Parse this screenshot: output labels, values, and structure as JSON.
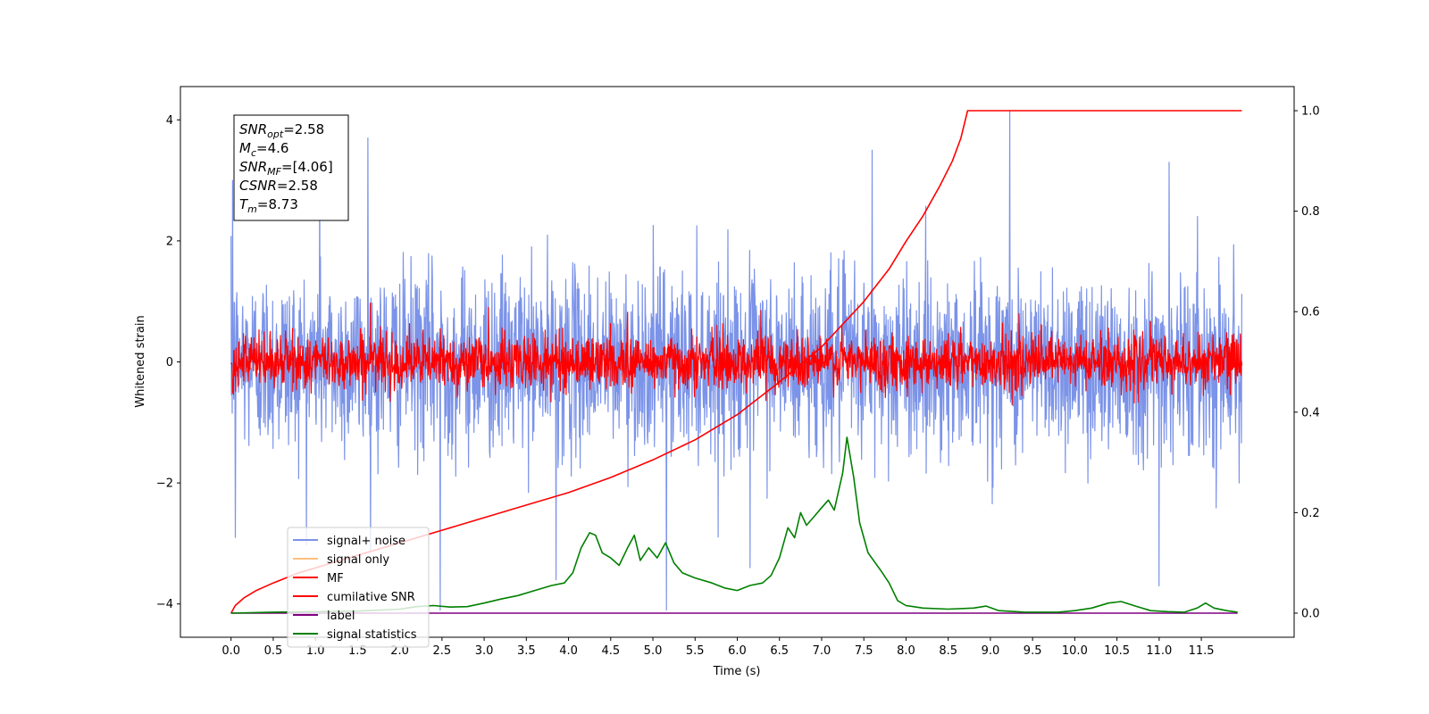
{
  "chart_data": {
    "type": "line",
    "xlabel": "Time (s)",
    "ylabel": "Whitened strain",
    "y2label": "",
    "xlim": [
      -0.6,
      12.6
    ],
    "ylim": [
      -4.55,
      4.55
    ],
    "y2lim": [
      -0.048,
      1.048
    ],
    "x_ticks": [
      0.0,
      0.5,
      1.0,
      1.5,
      2.0,
      2.5,
      3.0,
      3.5,
      4.0,
      4.5,
      5.0,
      5.5,
      6.0,
      6.5,
      7.0,
      7.5,
      8.0,
      8.5,
      9.0,
      9.5,
      10.0,
      10.5,
      11.0,
      11.5
    ],
    "x_tick_labels": [
      "0.0",
      "0.5",
      "1.0",
      "1.5",
      "2.0",
      "2.5",
      "3.0",
      "3.5",
      "4.0",
      "4.5",
      "5.0",
      "5.5",
      "6.0",
      "6.5",
      "7.0",
      "7.5",
      "8.0",
      "8.5",
      "9.0",
      "9.5",
      "10.0",
      "10.5",
      "11.0",
      "11.5"
    ],
    "y_ticks": [
      -4,
      -2,
      0,
      2,
      4
    ],
    "y_tick_labels": [
      "−4",
      "−2",
      "0",
      "2",
      "4"
    ],
    "y2_ticks": [
      0.0,
      0.2,
      0.4,
      0.6,
      0.8,
      1.0
    ],
    "y2_tick_labels": [
      "0.0",
      "0.2",
      "0.4",
      "0.6",
      "0.8",
      "1.0"
    ],
    "grid": false,
    "legend_position": "lower-left",
    "annotation": {
      "lines": [
        {
          "base": "SNR",
          "sub": "opt",
          "value": "=2.58"
        },
        {
          "base": "M",
          "sub": "c",
          "value": "=4.6"
        },
        {
          "base": "SNR",
          "sub": "MF",
          "value": "=[4.06]"
        },
        {
          "base": "CSNR",
          "sub": "",
          "value": "=2.58"
        },
        {
          "base": "T",
          "sub": "m",
          "value": "=8.73"
        }
      ]
    },
    "series": [
      {
        "name": "signal+ noise",
        "color": "#7b93e8",
        "axis": "left",
        "style": "noise",
        "x_range": [
          0.0,
          11.98
        ],
        "spread_std": 0.75,
        "spikes": [
          {
            "x": 0.02,
            "y": 3.0
          },
          {
            "x": 0.05,
            "y": -2.9
          },
          {
            "x": 1.05,
            "y": 3.5
          },
          {
            "x": 1.62,
            "y": 3.7
          },
          {
            "x": 2.48,
            "y": -4.1
          },
          {
            "x": 3.85,
            "y": -3.6
          },
          {
            "x": 5.16,
            "y": -4.1
          },
          {
            "x": 9.23,
            "y": 4.15
          },
          {
            "x": 11.0,
            "y": -3.7
          },
          {
            "x": 7.6,
            "y": 3.5
          },
          {
            "x": 11.12,
            "y": 3.3
          },
          {
            "x": 6.15,
            "y": -3.4
          }
        ]
      },
      {
        "name": "signal only",
        "color": "#ffbf7f",
        "axis": "left",
        "style": "hidden"
      },
      {
        "name": "MF",
        "color": "#ff0000",
        "axis": "left",
        "style": "noise",
        "x_range": [
          0.0,
          11.98
        ],
        "spread_std": 0.22,
        "spikes": [
          {
            "x": 1.65,
            "y": 0.97
          },
          {
            "x": 3.05,
            "y": 0.9
          },
          {
            "x": 6.28,
            "y": 0.85
          },
          {
            "x": 4.7,
            "y": 0.82
          }
        ]
      },
      {
        "name": "cumilative SNR",
        "color": "#ff0000",
        "axis": "right",
        "style": "line",
        "x": [
          0.0,
          0.05,
          0.15,
          0.3,
          0.5,
          0.8,
          1.0,
          1.5,
          2.0,
          2.5,
          3.0,
          3.5,
          4.0,
          4.5,
          5.0,
          5.5,
          6.0,
          6.5,
          7.0,
          7.5,
          7.8,
          8.0,
          8.2,
          8.4,
          8.55,
          8.65,
          8.73,
          9.0,
          10.0,
          11.0,
          11.98
        ],
        "y": [
          0.0,
          0.015,
          0.03,
          0.045,
          0.06,
          0.08,
          0.09,
          0.115,
          0.14,
          0.165,
          0.19,
          0.215,
          0.24,
          0.27,
          0.305,
          0.345,
          0.395,
          0.46,
          0.53,
          0.62,
          0.685,
          0.74,
          0.79,
          0.85,
          0.9,
          0.945,
          1.0,
          1.0,
          1.0,
          1.0,
          1.0
        ]
      },
      {
        "name": "label",
        "color": "#800080",
        "axis": "right",
        "style": "line",
        "x": [
          0.0,
          11.93
        ],
        "y": [
          0.0,
          0.0
        ]
      },
      {
        "name": "signal statistics",
        "color": "#008000",
        "axis": "right",
        "style": "line",
        "x": [
          0.0,
          0.5,
          1.0,
          1.5,
          2.0,
          2.2,
          2.4,
          2.6,
          2.8,
          3.0,
          3.2,
          3.4,
          3.6,
          3.8,
          3.95,
          4.05,
          4.15,
          4.25,
          4.32,
          4.4,
          4.5,
          4.6,
          4.7,
          4.78,
          4.85,
          4.95,
          5.05,
          5.15,
          5.25,
          5.35,
          5.5,
          5.7,
          5.85,
          6.0,
          6.15,
          6.3,
          6.4,
          6.5,
          6.55,
          6.6,
          6.68,
          6.75,
          6.82,
          6.9,
          7.0,
          7.08,
          7.15,
          7.25,
          7.3,
          7.38,
          7.45,
          7.55,
          7.7,
          7.8,
          7.9,
          8.0,
          8.2,
          8.5,
          8.8,
          8.95,
          9.1,
          9.4,
          9.8,
          10.0,
          10.2,
          10.4,
          10.55,
          10.7,
          10.9,
          11.1,
          11.3,
          11.45,
          11.55,
          11.65,
          11.8,
          11.93
        ],
        "y": [
          0.0,
          0.002,
          0.003,
          0.004,
          0.008,
          0.013,
          0.015,
          0.012,
          0.013,
          0.02,
          0.028,
          0.035,
          0.045,
          0.055,
          0.06,
          0.08,
          0.13,
          0.16,
          0.155,
          0.12,
          0.11,
          0.095,
          0.13,
          0.155,
          0.105,
          0.13,
          0.11,
          0.14,
          0.1,
          0.08,
          0.07,
          0.06,
          0.05,
          0.045,
          0.055,
          0.06,
          0.075,
          0.11,
          0.14,
          0.17,
          0.15,
          0.2,
          0.175,
          0.19,
          0.21,
          0.225,
          0.205,
          0.28,
          0.35,
          0.27,
          0.18,
          0.12,
          0.085,
          0.06,
          0.025,
          0.015,
          0.01,
          0.008,
          0.01,
          0.014,
          0.005,
          0.002,
          0.002,
          0.005,
          0.01,
          0.02,
          0.023,
          0.015,
          0.005,
          0.003,
          0.002,
          0.01,
          0.02,
          0.01,
          0.005,
          0.002
        ]
      }
    ]
  }
}
